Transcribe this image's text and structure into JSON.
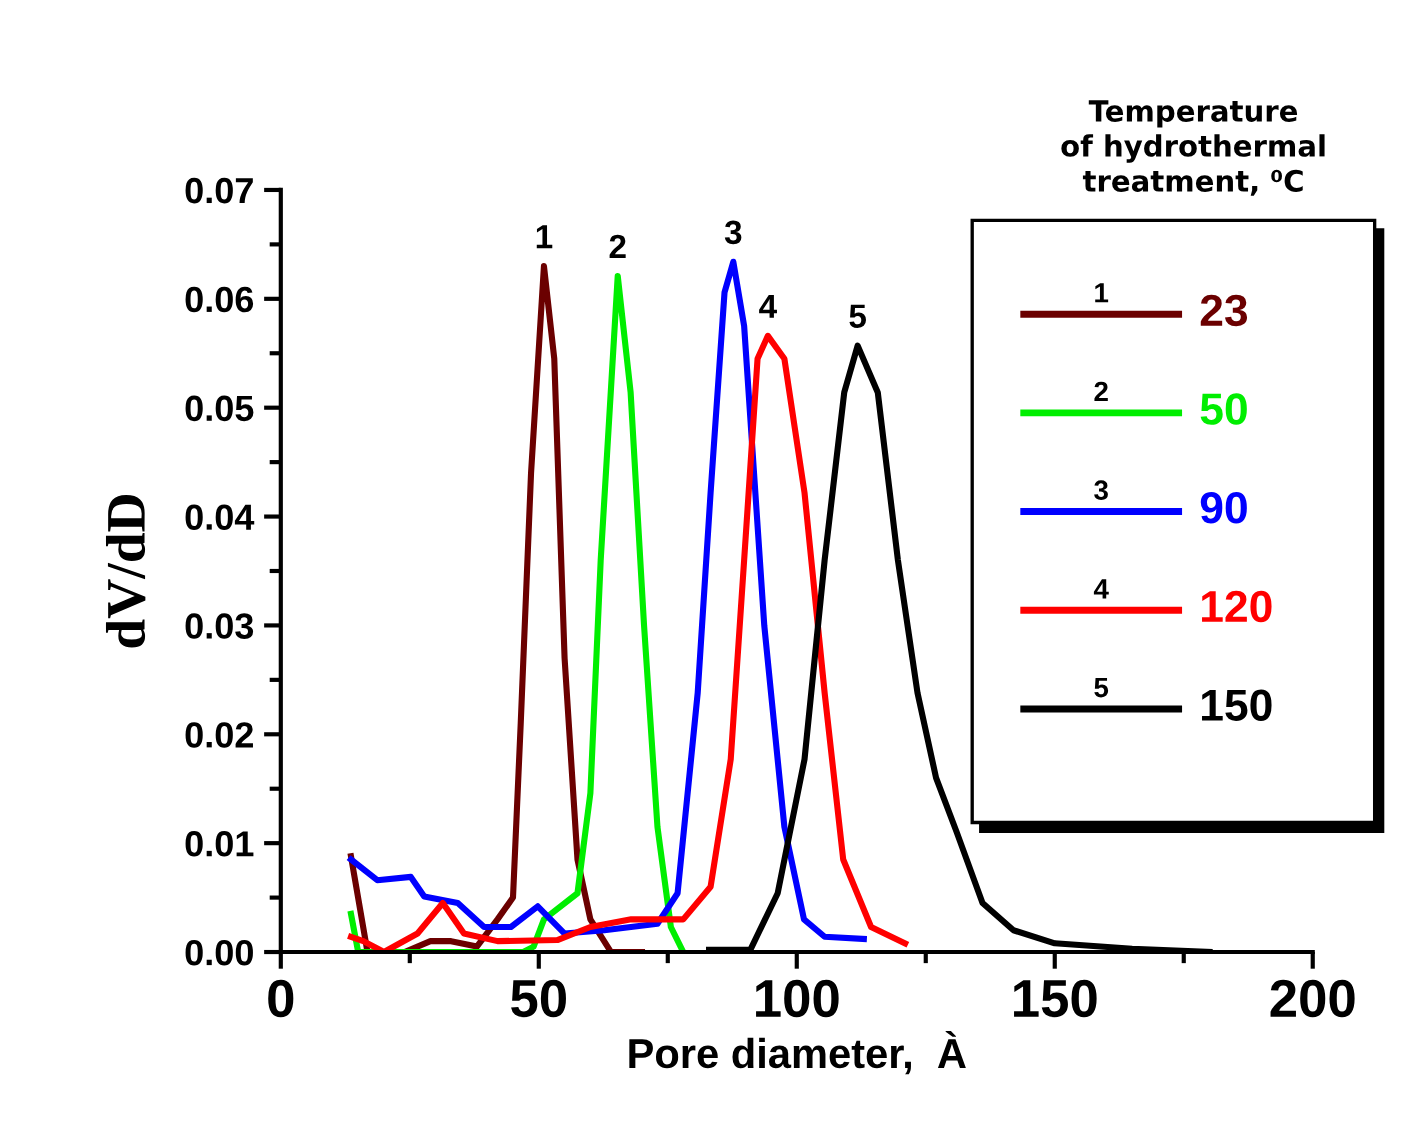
{
  "chart_data": {
    "type": "line",
    "xlabel": "Pore diameter,  À",
    "ylabel": "dV/dD",
    "legend_title": "Temperature\nof hydrothermal\ntreatment, ⁰C",
    "xlim": [
      0,
      200
    ],
    "xticks": [
      0,
      50,
      100,
      150,
      200
    ],
    "ylim": [
      0,
      0.07
    ],
    "yticks": [
      {
        "value": 0,
        "label": "0.00"
      },
      {
        "value": 0.01,
        "label": "0.01"
      },
      {
        "value": 0.02,
        "label": "0.02"
      },
      {
        "value": 0.03,
        "label": "0.03"
      },
      {
        "value": 0.04,
        "label": "0.04"
      },
      {
        "value": 0.05,
        "label": "0.05"
      },
      {
        "value": 0.06,
        "label": "0.06"
      },
      {
        "value": 0.07,
        "label": "0.07"
      }
    ],
    "grid": false,
    "legend": "top right",
    "marker": "none",
    "line_style": "solid",
    "series": [
      {
        "name": "23",
        "color": "#6b0000",
        "x": [
          13.6,
          16.8,
          24,
          29,
          33,
          38,
          42,
          45,
          46.5,
          48.5,
          51,
          53,
          55,
          57.5,
          60,
          64,
          70
        ],
        "values": [
          0.0088,
          0,
          0,
          0.001,
          0.001,
          0.0005,
          0.003,
          0.005,
          0.021,
          0.044,
          0.063,
          0.0545,
          0.027,
          0.0085,
          0.003,
          0,
          0
        ]
      },
      {
        "name": "50",
        "color": "#00ee00",
        "x": [
          13.6,
          15,
          30,
          47,
          49,
          51,
          57.5,
          60,
          62,
          65.3,
          67.8,
          70.4,
          73,
          75.6,
          78
        ],
        "values": [
          0.0035,
          0,
          0,
          0,
          0.0005,
          0.003,
          0.0054,
          0.0146,
          0.036,
          0.0621,
          0.0514,
          0.03,
          0.0115,
          0.0023,
          0
        ]
      },
      {
        "name": "90",
        "color": "#0000ff",
        "x": [
          13.6,
          18.7,
          25.2,
          27.8,
          34.3,
          39.4,
          44.6,
          49.8,
          55,
          62.7,
          73,
          76.9,
          80.8,
          83.3,
          86,
          87.7,
          89.8,
          93.7,
          97.6,
          101.4,
          105.4,
          113
        ],
        "values": [
          0.0085,
          0.0066,
          0.0069,
          0.0051,
          0.0045,
          0.0023,
          0.0023,
          0.0042,
          0.0017,
          0.002,
          0.0026,
          0.0054,
          0.0238,
          0.0422,
          0.0606,
          0.0634,
          0.0575,
          0.03,
          0.0115,
          0.003,
          0.0014,
          0.0012
        ]
      },
      {
        "name": "120",
        "color": "#ff0000",
        "x": [
          13.6,
          16,
          20,
          26.5,
          31.4,
          35.5,
          42,
          53.6,
          60,
          67.9,
          78,
          83.3,
          87.2,
          89.8,
          92.4,
          94.4,
          97.6,
          101.5,
          105.4,
          109,
          114.4,
          121
        ],
        "values": [
          0.0014,
          0.001,
          0,
          0.0017,
          0.0045,
          0.0017,
          0.001,
          0.0011,
          0.0023,
          0.003,
          0.003,
          0.006,
          0.0177,
          0.036,
          0.0545,
          0.0566,
          0.0545,
          0.0422,
          0.0238,
          0.0085,
          0.0023,
          0.0008
        ]
      },
      {
        "name": "150",
        "color": "#000000",
        "x": [
          83,
          91,
          96.3,
          101.5,
          105.4,
          109.2,
          111.8,
          115.7,
          119.6,
          123.4,
          127,
          131,
          136,
          142,
          150,
          165,
          180
        ],
        "values": [
          0.0002,
          0.0002,
          0.0054,
          0.0177,
          0.036,
          0.0514,
          0.0557,
          0.0514,
          0.036,
          0.0238,
          0.016,
          0.011,
          0.0045,
          0.002,
          0.0008,
          0.0003,
          0
        ]
      }
    ],
    "annotations": [
      "1",
      "2",
      "3",
      "4",
      "5"
    ]
  }
}
